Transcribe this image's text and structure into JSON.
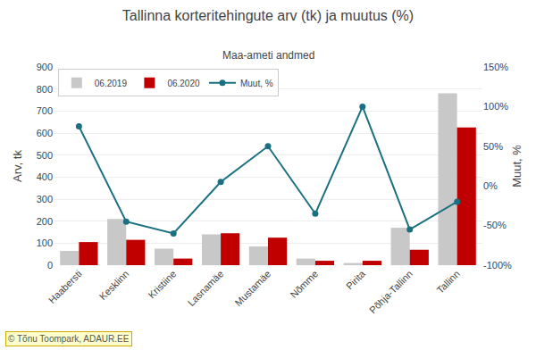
{
  "chart_data": {
    "type": "bar",
    "title": "Tallinna korteritehingute arv (tk) ja muutus (%)",
    "subtitle": "Maa-ameti andmed",
    "ylabel": "Arv, tk",
    "y2label": "Muut, %",
    "categories": [
      "Haabersti",
      "Kesklinn",
      "Kristiine",
      "Lasnamäe",
      "Mustamäe",
      "Nõmme",
      "Pirita",
      "Põhja-Tallinn",
      "Tallinn"
    ],
    "series": [
      {
        "name": "06.2019",
        "type": "bar",
        "color": "#c8c8c8",
        "values": [
          65,
          210,
          75,
          140,
          85,
          30,
          10,
          170,
          780
        ]
      },
      {
        "name": "06.2020",
        "type": "bar",
        "color": "#c00000",
        "values": [
          105,
          115,
          30,
          145,
          125,
          20,
          20,
          70,
          625
        ]
      },
      {
        "name": "Muut, %",
        "type": "line",
        "axis": "y2",
        "color": "#1a7080",
        "marker": "circle",
        "values": [
          75,
          -45,
          -60,
          5,
          50,
          -35,
          100,
          -55,
          -20
        ]
      }
    ],
    "ylim": [
      0,
      900
    ],
    "yticks": [
      0,
      100,
      200,
      300,
      400,
      500,
      600,
      700,
      800,
      900
    ],
    "y2lim": [
      -100,
      150
    ],
    "y2ticks": [
      {
        "value": -100,
        "label": "-100%"
      },
      {
        "value": -50,
        "label": "-50%"
      },
      {
        "value": 0,
        "label": "0%"
      },
      {
        "value": 50,
        "label": "50%"
      },
      {
        "value": 100,
        "label": "100%"
      },
      {
        "value": 150,
        "label": "150%"
      }
    ],
    "grid": true,
    "legend": "upper left",
    "annotations": [
      "© Tõnu Toompark, ADAUR.EE"
    ]
  }
}
